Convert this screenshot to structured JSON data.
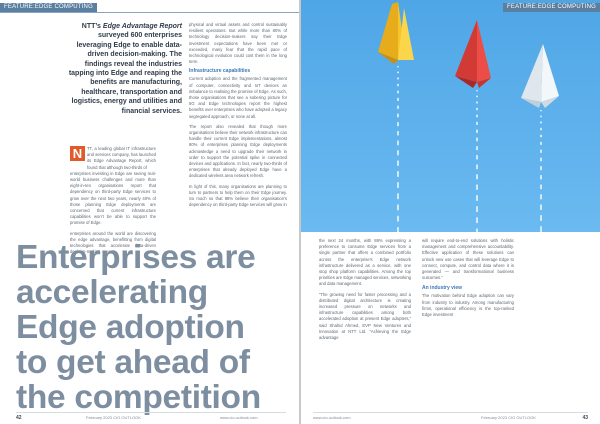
{
  "left_page": {
    "section_tag": "FEATURE:EDGE COMPUTING",
    "intro": {
      "part1": "NTT’s ",
      "part_italic": "Edge Advantage Report",
      "part2": " surveyed 600 enterprises leveraging Edge to enable data-driven decision-making. The findings reveal the industries tapping into Edge and reaping the benefits are manufacturing, healthcare, transportation and logistics, energy and utilities and financial services."
    },
    "drop_cap": "N",
    "col1": {
      "p1_lead": "TT, a leading global IT infrastructure and services company, has launched its Edge Advantage Report, which found that although two-thirds of",
      "p1_rest": "enterprises investing in Edge are seeing real-world business challenges and more than eight-in-ten organisations report that dependency on third-party Edge services to grow over the next two years, nearly 40% of those planning Edge deployments are concerned that current infrastructure capabilities won’t be able to support the promise of Edge.",
      "p2": "enterprises around the world are discovering the edge advantage, benefitting from digital technologies that accelerate data-driven decision-making, secure"
    },
    "col2": {
      "p1": "physical and virtual assets and control sustainably resilient operations. But while more than 80% of technology decision-makers say their Edge investment expectations have been met or exceeded, many fear that the rapid pace of technological evolution could cost them in the long term.",
      "subhead": "Infrastructure capabilities",
      "p2": "Current adoption and the fragmented management of computer, connectivity and IoT devices an imbalance to realising the promise of Edge. As such, those organisations that see a sobering picture for 5G and Edge technologies report the highest benefits over enterprises who have adopted a legacy segregated approach, or none at all.",
      "p3": "The report also revealed that though more organisations believe their network infrastructure can handle their current Edge implementations, almost 80% of enterprises planning Edge deployments acknowledge a need to upgrade their network in order to support the potential spike in connected devices and applications. In fact, nearly two-thirds of enterprises that already deployed Edge have a dedicated wireless area network refresh.",
      "p4": "In light of this, many organisations are planning to turn to partners to help them on their Edge journey. So much so that 88% believe their organisation’s dependency on third-party Edge services will grow in"
    },
    "headline": [
      "Enterprises are",
      "accelerating",
      "Edge adoption",
      "to get ahead of",
      "the competition"
    ],
    "footer": {
      "page_number": "42",
      "issue": "February 2023 CIO OUTLOOK",
      "url": "www.cio-outlook.com"
    }
  },
  "right_page": {
    "section_tag": "FEATURE:EDGE COMPUTING",
    "photo": {
      "description_icons": [
        "paper-plane-yellow",
        "paper-plane-red",
        "paper-plane-white"
      ],
      "colors": {
        "sky": "#5fb2ee",
        "plane_yellow": "#f6c52c",
        "plane_red": "#ed4d47",
        "plane_white": "#f4f7fa",
        "trail": "#ffffff"
      }
    },
    "col1": {
      "p1": "the next 24 months, with 88% expressing a preference to consume Edge services from a single partner that offers a combined portfolio across the enterprise's Edge network infrastructure delivered as a service, with one stop shop platform capabilities. Among the top priorities are Edge managed services, networking and data management.",
      "p2": "“The growing need for faster processing and a distributed digital architecture is creating increased pressure on networks and infrastructure capabilities among both accelerated adoption at present Edge adopters,” said Shahid Ahmed, EVP New Ventures and Innovation at NTT Ltd. “Achieving the Edge advantage"
    },
    "col2": {
      "p1": "will require end-to-end solutions with holistic management and comprehensive accountability. Effective application of these solutions can unlock new use cases that will leverage Edge to connect, compute, and control data where it is generated — and transformational business outcomes.”",
      "subhead": "An industry view",
      "p2": "The motivation behind Edge adoption can vary from industry to industry. Among manufacturing firms, operational efficiency is the top-ranked Edge investment"
    },
    "footer": {
      "url": "www.cio-outlook.com",
      "issue": "February 2023 CIO OUTLOOK",
      "page_number": "43"
    }
  }
}
